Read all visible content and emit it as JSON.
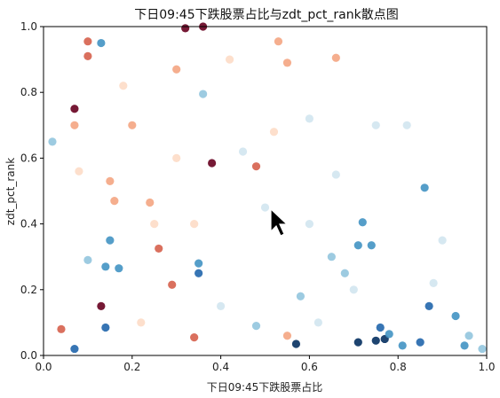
{
  "chart_data": {
    "type": "scatter",
    "title": "下日09:45下跌股票占比与zdt_pct_rank散点图",
    "xlabel": "下日09:45下跌股票占比",
    "ylabel": "zdt_pct_rank",
    "xlim": [
      0,
      1
    ],
    "ylim": [
      0,
      1
    ],
    "x_ticks": [
      "0.0",
      "0.2",
      "0.4",
      "0.6",
      "0.8",
      "1.0"
    ],
    "y_ticks": [
      "0.0",
      "0.2",
      "0.4",
      "0.6",
      "0.8",
      "1.0"
    ],
    "grid": false,
    "colormap": "RdBu",
    "points": [
      {
        "x": 0.36,
        "y": 1.0,
        "color": "#67001f"
      },
      {
        "x": 0.32,
        "y": 0.995,
        "color": "#67001f"
      },
      {
        "x": 0.07,
        "y": 0.75,
        "color": "#67001f"
      },
      {
        "x": 0.38,
        "y": 0.585,
        "color": "#67001f"
      },
      {
        "x": 0.13,
        "y": 0.15,
        "color": "#67001f"
      },
      {
        "x": 0.1,
        "y": 0.955,
        "color": "#d6604d"
      },
      {
        "x": 0.1,
        "y": 0.91,
        "color": "#d6604d"
      },
      {
        "x": 0.07,
        "y": 0.7,
        "color": "#f4a582"
      },
      {
        "x": 0.48,
        "y": 0.575,
        "color": "#d6604d"
      },
      {
        "x": 0.26,
        "y": 0.325,
        "color": "#d6604d"
      },
      {
        "x": 0.29,
        "y": 0.215,
        "color": "#d6604d"
      },
      {
        "x": 0.34,
        "y": 0.055,
        "color": "#d6604d"
      },
      {
        "x": 0.04,
        "y": 0.08,
        "color": "#d6604d"
      },
      {
        "x": 0.16,
        "y": 0.47,
        "color": "#f4a582"
      },
      {
        "x": 0.24,
        "y": 0.465,
        "color": "#f4a582"
      },
      {
        "x": 0.2,
        "y": 0.7,
        "color": "#f4a582"
      },
      {
        "x": 0.3,
        "y": 0.87,
        "color": "#f4a582"
      },
      {
        "x": 0.55,
        "y": 0.89,
        "color": "#f4a582"
      },
      {
        "x": 0.53,
        "y": 0.955,
        "color": "#f4a582"
      },
      {
        "x": 0.66,
        "y": 0.905,
        "color": "#f4a582"
      },
      {
        "x": 0.15,
        "y": 0.53,
        "color": "#f4a582"
      },
      {
        "x": 0.55,
        "y": 0.06,
        "color": "#f4a582"
      },
      {
        "x": 0.13,
        "y": 0.95,
        "color": "#4393c3"
      },
      {
        "x": 0.36,
        "y": 0.795,
        "color": "#92c5de"
      },
      {
        "x": 0.02,
        "y": 0.65,
        "color": "#92c5de"
      },
      {
        "x": 0.86,
        "y": 0.51,
        "color": "#4393c3"
      },
      {
        "x": 0.71,
        "y": 0.335,
        "color": "#4393c3"
      },
      {
        "x": 0.74,
        "y": 0.335,
        "color": "#4393c3"
      },
      {
        "x": 0.72,
        "y": 0.405,
        "color": "#4393c3"
      },
      {
        "x": 0.15,
        "y": 0.35,
        "color": "#4393c3"
      },
      {
        "x": 0.1,
        "y": 0.29,
        "color": "#92c5de"
      },
      {
        "x": 0.14,
        "y": 0.27,
        "color": "#4393c3"
      },
      {
        "x": 0.17,
        "y": 0.265,
        "color": "#4393c3"
      },
      {
        "x": 0.35,
        "y": 0.25,
        "color": "#2166ac"
      },
      {
        "x": 0.35,
        "y": 0.28,
        "color": "#4393c3"
      },
      {
        "x": 0.14,
        "y": 0.085,
        "color": "#2166ac"
      },
      {
        "x": 0.07,
        "y": 0.02,
        "color": "#2166ac"
      },
      {
        "x": 0.57,
        "y": 0.035,
        "color": "#053061"
      },
      {
        "x": 0.71,
        "y": 0.04,
        "color": "#053061"
      },
      {
        "x": 0.75,
        "y": 0.045,
        "color": "#053061"
      },
      {
        "x": 0.77,
        "y": 0.05,
        "color": "#053061"
      },
      {
        "x": 0.76,
        "y": 0.085,
        "color": "#2166ac"
      },
      {
        "x": 0.78,
        "y": 0.065,
        "color": "#4393c3"
      },
      {
        "x": 0.85,
        "y": 0.04,
        "color": "#2166ac"
      },
      {
        "x": 0.87,
        "y": 0.15,
        "color": "#2166ac"
      },
      {
        "x": 0.93,
        "y": 0.12,
        "color": "#4393c3"
      },
      {
        "x": 0.95,
        "y": 0.03,
        "color": "#4393c3"
      },
      {
        "x": 0.99,
        "y": 0.02,
        "color": "#92c5de"
      },
      {
        "x": 0.81,
        "y": 0.03,
        "color": "#4393c3"
      },
      {
        "x": 0.65,
        "y": 0.3,
        "color": "#92c5de"
      },
      {
        "x": 0.68,
        "y": 0.25,
        "color": "#92c5de"
      },
      {
        "x": 0.45,
        "y": 0.62,
        "color": "#d1e5f0"
      },
      {
        "x": 0.5,
        "y": 0.45,
        "color": "#d1e5f0"
      },
      {
        "x": 0.6,
        "y": 0.72,
        "color": "#d1e5f0"
      },
      {
        "x": 0.7,
        "y": 0.2,
        "color": "#d1e5f0"
      },
      {
        "x": 0.62,
        "y": 0.1,
        "color": "#d1e5f0"
      },
      {
        "x": 0.4,
        "y": 0.15,
        "color": "#d1e5f0"
      },
      {
        "x": 0.25,
        "y": 0.4,
        "color": "#fddbc7"
      },
      {
        "x": 0.42,
        "y": 0.9,
        "color": "#fddbc7"
      },
      {
        "x": 0.08,
        "y": 0.56,
        "color": "#fddbc7"
      },
      {
        "x": 0.22,
        "y": 0.1,
        "color": "#fddbc7"
      },
      {
        "x": 0.3,
        "y": 0.6,
        "color": "#fddbc7"
      },
      {
        "x": 0.82,
        "y": 0.7,
        "color": "#d1e5f0"
      },
      {
        "x": 0.9,
        "y": 0.35,
        "color": "#d1e5f0"
      },
      {
        "x": 0.66,
        "y": 0.55,
        "color": "#d1e5f0"
      },
      {
        "x": 0.58,
        "y": 0.18,
        "color": "#92c5de"
      },
      {
        "x": 0.48,
        "y": 0.09,
        "color": "#92c5de"
      },
      {
        "x": 0.52,
        "y": 0.68,
        "color": "#fddbc7"
      },
      {
        "x": 0.18,
        "y": 0.82,
        "color": "#fddbc7"
      },
      {
        "x": 0.34,
        "y": 0.4,
        "color": "#fddbc7"
      },
      {
        "x": 0.75,
        "y": 0.7,
        "color": "#d1e5f0"
      },
      {
        "x": 0.96,
        "y": 0.06,
        "color": "#92c5de"
      },
      {
        "x": 0.88,
        "y": 0.22,
        "color": "#d1e5f0"
      },
      {
        "x": 0.6,
        "y": 0.4,
        "color": "#d1e5f0"
      }
    ]
  }
}
